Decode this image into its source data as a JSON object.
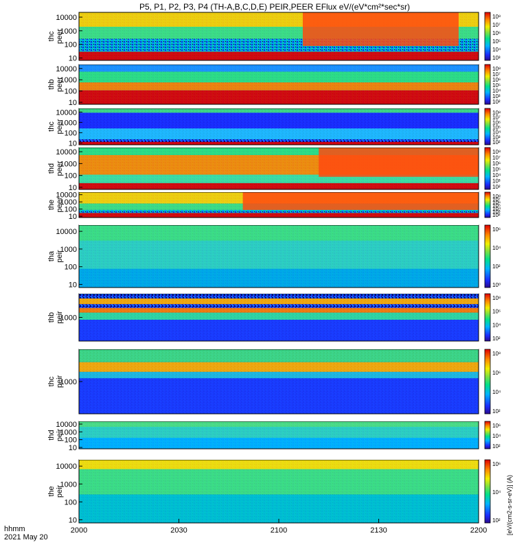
{
  "title": "P5, P1, P2, P3, P4 (TH-A,B,C,D,E) PEIR,PEER EFlux eV/(eV*cm²*sec*sr)",
  "x_label_1": "hhmm",
  "x_label_2": "2021 May 20",
  "colorbar_label": "[eV/(cm2-s-sr-eV)] (A)",
  "chart_data": {
    "type": "heatmap",
    "x_ticks": [
      "2000",
      "2030",
      "2100",
      "2130",
      "2200"
    ],
    "x_range": [
      "20:00",
      "22:00"
    ],
    "panels": [
      {
        "label": [
          "thc",
          "peer"
        ],
        "y_ticks": [
          "10000",
          "1000",
          "100",
          "10"
        ],
        "y_scale": "log",
        "cbar_ticks": [
          "10⁸",
          "10⁷",
          "10⁶",
          "10⁵",
          "10⁴",
          "10³"
        ]
      },
      {
        "label": [
          "thb",
          "peer"
        ],
        "y_ticks": [
          "10000",
          "1000",
          "100",
          "10"
        ],
        "y_scale": "log",
        "cbar_ticks": [
          "10⁸",
          "10⁷",
          "10⁶",
          "10⁵",
          "10⁴",
          "10³",
          "10²"
        ]
      },
      {
        "label": [
          "thc",
          "peer"
        ],
        "y_ticks": [
          "10000",
          "1000",
          "100",
          "10"
        ],
        "y_scale": "log",
        "cbar_ticks": [
          "10⁸",
          "10⁷",
          "10⁶",
          "10⁵",
          "10⁴",
          "10³",
          "10²"
        ]
      },
      {
        "label": [
          "thd",
          "peer"
        ],
        "y_ticks": [
          "10000",
          "1000",
          "100",
          "10"
        ],
        "y_scale": "log",
        "cbar_ticks": [
          "10⁸",
          "10⁷",
          "10⁶",
          "10⁵",
          "10⁴",
          "10³",
          "10²"
        ]
      },
      {
        "label": [
          "the",
          "peer"
        ],
        "y_ticks": [
          "10000",
          "1000",
          "100",
          "10"
        ],
        "y_scale": "log",
        "cbar_ticks": [
          "10⁸",
          "10⁷",
          "10⁶",
          "10⁵",
          "10⁴",
          "10³",
          "10²"
        ]
      },
      {
        "label": [
          "tha",
          "peir"
        ],
        "y_ticks": [
          "10000",
          "1000",
          "100",
          "10"
        ],
        "y_scale": "log",
        "cbar_ticks": [
          "10⁶",
          "10⁴",
          "10²",
          "10⁰"
        ]
      },
      {
        "label": [
          "thb",
          "peir"
        ],
        "y_ticks": [
          "1000"
        ],
        "y_scale": "log",
        "cbar_ticks": [
          "10⁸",
          "10⁶",
          "10⁴",
          "10²"
        ]
      },
      {
        "label": [
          "thc",
          "peir"
        ],
        "y_ticks": [
          "1000"
        ],
        "y_scale": "log",
        "cbar_ticks": [
          "10⁸",
          "10⁶",
          "10⁴",
          "10²"
        ]
      },
      {
        "label": [
          "thd",
          "peir"
        ],
        "y_ticks": [
          "10000",
          "1000",
          "100",
          "10"
        ],
        "y_scale": "log",
        "cbar_ticks": [
          "10⁶",
          "10⁴",
          "10²"
        ]
      },
      {
        "label": [
          "the",
          "peir"
        ],
        "y_ticks": [
          "10000",
          "1000",
          "100",
          "10"
        ],
        "y_scale": "log",
        "cbar_ticks": [
          "10⁶",
          "10⁴",
          "10²"
        ]
      }
    ]
  }
}
